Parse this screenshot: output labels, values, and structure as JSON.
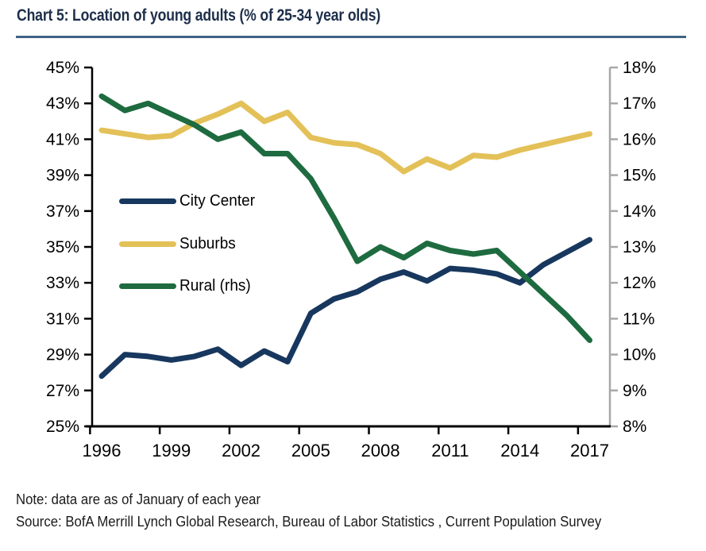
{
  "page": {
    "title": "Chart 5: Location of young adults (% of 25-34 year olds)",
    "note": "Note: data are as of January of each year",
    "source": "Source: BofA Merrill Lynch Global Research, Bureau of Labor Statistics , Current Population Survey"
  },
  "colors": {
    "title_text": "#1C2E4A",
    "title_underline": "#3E6385",
    "axis_black": "#000000",
    "axis_gray": "#A8A8A8",
    "tick_label": "#000000",
    "city_center": "#17375E",
    "suburbs": "#E3C158",
    "rural": "#1E6B40"
  },
  "chart_data": {
    "type": "line",
    "title": "Chart 5: Location of young adults (% of 25-34 year olds)",
    "x": [
      1996,
      1997,
      1998,
      1999,
      2000,
      2001,
      2002,
      2003,
      2004,
      2005,
      2006,
      2007,
      2008,
      2009,
      2010,
      2011,
      2012,
      2013,
      2014,
      2015,
      2016,
      2017
    ],
    "x_tick_labels": [
      "1996",
      "1999",
      "2002",
      "2005",
      "2008",
      "2011",
      "2014",
      "2017"
    ],
    "x_tick_years": [
      1996,
      1999,
      2002,
      2005,
      2008,
      2011,
      2014,
      2017
    ],
    "left_axis": {
      "min": 25,
      "max": 45,
      "tick_step": 2,
      "tick_values": [
        45,
        43,
        41,
        39,
        37,
        35,
        33,
        31,
        29,
        27,
        25
      ],
      "tick_labels": [
        "45%",
        "43%",
        "41%",
        "39%",
        "37%",
        "35%",
        "33%",
        "31%",
        "29%",
        "27%",
        "25%"
      ]
    },
    "right_axis": {
      "min": 8,
      "max": 18,
      "tick_step": 1,
      "tick_values": [
        18,
        17,
        16,
        15,
        14,
        13,
        12,
        11,
        10,
        9,
        8
      ],
      "tick_labels": [
        "18%",
        "17%",
        "16%",
        "15%",
        "14%",
        "13%",
        "12%",
        "11%",
        "10%",
        "9%",
        "8%"
      ]
    },
    "series": [
      {
        "name": "City Center",
        "axis": "left",
        "color_key": "city_center",
        "values": [
          27.8,
          29.0,
          28.9,
          28.7,
          28.9,
          29.3,
          28.4,
          29.2,
          28.6,
          31.3,
          32.1,
          32.5,
          33.2,
          33.6,
          33.1,
          33.8,
          33.7,
          33.5,
          33.0,
          34.0,
          34.7,
          35.4
        ]
      },
      {
        "name": "Suburbs",
        "axis": "left",
        "color_key": "suburbs",
        "values": [
          41.5,
          41.3,
          41.1,
          41.2,
          41.9,
          42.4,
          43.0,
          42.0,
          42.5,
          41.1,
          40.8,
          40.7,
          40.2,
          39.2,
          39.9,
          39.4,
          40.1,
          40.0,
          40.4,
          40.7,
          41.0,
          41.3
        ]
      },
      {
        "name": "Rural (rhs)",
        "axis": "right",
        "color_key": "rural",
        "values": [
          17.2,
          16.8,
          17.0,
          16.7,
          16.4,
          16.0,
          16.2,
          15.6,
          15.6,
          14.9,
          13.8,
          12.6,
          13.0,
          12.7,
          13.1,
          12.9,
          12.8,
          12.9,
          12.3,
          11.7,
          11.1,
          10.4
        ]
      }
    ],
    "legend_position": "inside-left",
    "grid": false
  }
}
